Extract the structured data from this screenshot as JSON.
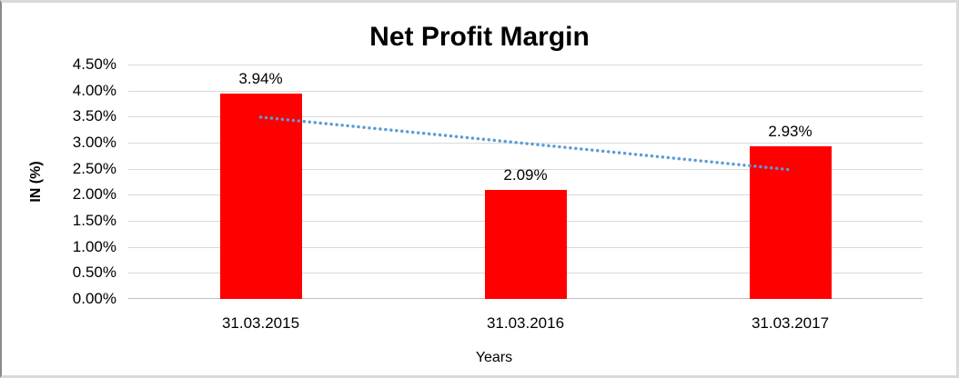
{
  "chart_data": {
    "type": "bar",
    "title": "Net Profit Margin",
    "categories": [
      "31.03.2015",
      "31.03.2016",
      "31.03.2017"
    ],
    "values": [
      3.94,
      2.09,
      2.93
    ],
    "data_labels": [
      "3.94%",
      "2.09%",
      "2.93%"
    ],
    "xlabel": "Years",
    "ylabel": "IN (%)",
    "ylim": [
      0,
      4.5
    ],
    "ytick_step": 0.5,
    "ytick_labels": [
      "4.50%",
      "4.00%",
      "3.50%",
      "3.00%",
      "2.50%",
      "2.00%",
      "1.50%",
      "1.00%",
      "0.50%",
      "0.00%"
    ],
    "grid": true,
    "legend": "none",
    "bar_color": "#FF0000",
    "gridline_color": "#D9D9D9",
    "axis_line_color": "#BFBFBF",
    "text_color": "#000000",
    "trendline": {
      "type": "linear",
      "style": "dotted",
      "color": "#5B9BD5",
      "start_value": 3.49,
      "end_value": 2.48
    }
  }
}
